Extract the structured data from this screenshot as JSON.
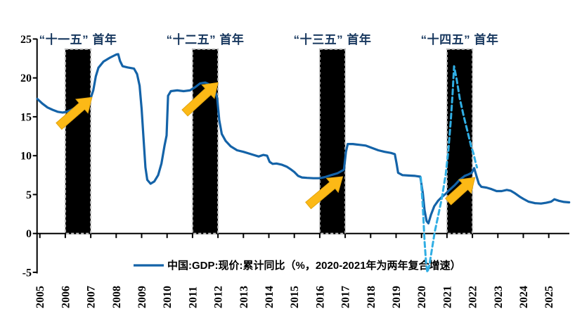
{
  "chart_data": {
    "type": "line",
    "title": "",
    "xlabel": "",
    "ylabel": "",
    "xlim": [
      2004.9,
      2025.9
    ],
    "ylim": [
      -5,
      25
    ],
    "y_ticks": [
      -5,
      0,
      5,
      10,
      15,
      20,
      25
    ],
    "x_ticks": [
      2005,
      2006,
      2007,
      2008,
      2009,
      2010,
      2011,
      2012,
      2013,
      2014,
      2015,
      2016,
      2017,
      2018,
      2019,
      2020,
      2021,
      2022,
      2023,
      2024,
      2025
    ],
    "grid": false,
    "legend": {
      "position": "bottom",
      "label": "中国:GDP:现价:累计同比（%，2020-2021年为两年复合增速）"
    },
    "colors": {
      "solid_line": "#1463A8",
      "dashed_line": "#30AEE4",
      "arrow": "#FCB916",
      "band_fill": "#000000",
      "band_border": "#BFBFBF",
      "plan_label": "#17375E",
      "axis": "#000000"
    },
    "series": [
      {
        "id": "gdp-current-price-cumulative-yoy",
        "style": "solid",
        "points": [
          [
            2004.9,
            17.3
          ],
          [
            2005.1,
            16.7
          ],
          [
            2005.3,
            16.2
          ],
          [
            2005.5,
            15.9
          ],
          [
            2005.7,
            15.65
          ],
          [
            2005.9,
            15.55
          ],
          [
            2006.1,
            15.7
          ],
          [
            2006.3,
            16.0
          ],
          [
            2006.5,
            16.4
          ],
          [
            2006.7,
            16.8
          ],
          [
            2006.9,
            17.0
          ],
          [
            2007.0,
            17.4
          ],
          [
            2007.1,
            18.4
          ],
          [
            2007.2,
            20.2
          ],
          [
            2007.3,
            21.3
          ],
          [
            2007.5,
            22.1
          ],
          [
            2007.75,
            22.6
          ],
          [
            2008.0,
            23.0
          ],
          [
            2008.08,
            23.05
          ],
          [
            2008.15,
            22.2
          ],
          [
            2008.25,
            21.5
          ],
          [
            2008.45,
            21.35
          ],
          [
            2008.7,
            21.2
          ],
          [
            2008.82,
            20.5
          ],
          [
            2008.92,
            19.0
          ],
          [
            2009.0,
            16.0
          ],
          [
            2009.07,
            12.5
          ],
          [
            2009.15,
            8.5
          ],
          [
            2009.22,
            6.9
          ],
          [
            2009.35,
            6.4
          ],
          [
            2009.5,
            6.7
          ],
          [
            2009.65,
            7.5
          ],
          [
            2009.78,
            9.0
          ],
          [
            2009.9,
            11.3
          ],
          [
            2009.98,
            12.6
          ],
          [
            2010.04,
            17.7
          ],
          [
            2010.15,
            18.3
          ],
          [
            2010.4,
            18.4
          ],
          [
            2010.65,
            18.3
          ],
          [
            2010.9,
            18.4
          ],
          [
            2011.1,
            18.8
          ],
          [
            2011.3,
            19.3
          ],
          [
            2011.5,
            19.4
          ],
          [
            2011.7,
            19.1
          ],
          [
            2011.85,
            18.6
          ],
          [
            2011.97,
            17.4
          ],
          [
            2012.05,
            14.6
          ],
          [
            2012.15,
            12.8
          ],
          [
            2012.3,
            11.9
          ],
          [
            2012.5,
            11.2
          ],
          [
            2012.75,
            10.7
          ],
          [
            2013.0,
            10.5
          ],
          [
            2013.2,
            10.3
          ],
          [
            2013.4,
            10.1
          ],
          [
            2013.6,
            9.9
          ],
          [
            2013.78,
            10.1
          ],
          [
            2013.93,
            10.0
          ],
          [
            2014.03,
            9.2
          ],
          [
            2014.15,
            8.95
          ],
          [
            2014.3,
            9.0
          ],
          [
            2014.5,
            8.85
          ],
          [
            2014.7,
            8.6
          ],
          [
            2014.88,
            8.2
          ],
          [
            2015.0,
            7.9
          ],
          [
            2015.15,
            7.4
          ],
          [
            2015.3,
            7.2
          ],
          [
            2015.5,
            7.15
          ],
          [
            2015.75,
            7.1
          ],
          [
            2016.0,
            7.1
          ],
          [
            2016.2,
            7.25
          ],
          [
            2016.45,
            7.5
          ],
          [
            2016.7,
            7.75
          ],
          [
            2016.95,
            8.2
          ],
          [
            2017.03,
            10.5
          ],
          [
            2017.1,
            11.5
          ],
          [
            2017.3,
            11.5
          ],
          [
            2017.55,
            11.4
          ],
          [
            2017.8,
            11.3
          ],
          [
            2018.05,
            11.0
          ],
          [
            2018.3,
            10.7
          ],
          [
            2018.55,
            10.5
          ],
          [
            2018.8,
            10.35
          ],
          [
            2018.95,
            10.2
          ],
          [
            2019.02,
            9.0
          ],
          [
            2019.08,
            7.8
          ],
          [
            2019.25,
            7.5
          ],
          [
            2019.5,
            7.45
          ],
          [
            2019.75,
            7.4
          ],
          [
            2019.95,
            7.3
          ],
          [
            2020.05,
            5.2
          ],
          [
            2020.12,
            3.0
          ],
          [
            2020.2,
            1.6
          ],
          [
            2020.27,
            1.3
          ],
          [
            2020.37,
            2.4
          ],
          [
            2020.5,
            3.5
          ],
          [
            2020.65,
            4.2
          ],
          [
            2020.8,
            4.7
          ],
          [
            2020.95,
            5.1
          ],
          [
            2021.1,
            5.6
          ],
          [
            2021.3,
            6.2
          ],
          [
            2021.5,
            6.9
          ],
          [
            2021.7,
            7.4
          ],
          [
            2021.85,
            7.6
          ],
          [
            2021.97,
            7.8
          ],
          [
            2022.07,
            8.4
          ],
          [
            2022.15,
            7.5
          ],
          [
            2022.25,
            6.4
          ],
          [
            2022.35,
            6.0
          ],
          [
            2022.55,
            5.9
          ],
          [
            2022.75,
            5.7
          ],
          [
            2022.95,
            5.45
          ],
          [
            2023.15,
            5.45
          ],
          [
            2023.35,
            5.6
          ],
          [
            2023.5,
            5.5
          ],
          [
            2023.68,
            5.15
          ],
          [
            2023.85,
            4.75
          ],
          [
            2024.0,
            4.45
          ],
          [
            2024.2,
            4.1
          ],
          [
            2024.45,
            3.9
          ],
          [
            2024.7,
            3.85
          ],
          [
            2024.9,
            3.95
          ],
          [
            2025.1,
            4.1
          ],
          [
            2025.22,
            4.4
          ],
          [
            2025.4,
            4.2
          ],
          [
            2025.6,
            4.05
          ],
          [
            2025.8,
            4.0
          ]
        ]
      },
      {
        "id": "actual-cumulative-yoy-2020-2021",
        "style": "dashed",
        "points": [
          [
            2019.97,
            7.2
          ],
          [
            2020.05,
            3.5
          ],
          [
            2020.12,
            -1.0
          ],
          [
            2020.18,
            -3.8
          ],
          [
            2020.23,
            -5.0
          ],
          [
            2020.3,
            -4.2
          ],
          [
            2020.4,
            -2.2
          ],
          [
            2020.52,
            0.2
          ],
          [
            2020.65,
            2.2
          ],
          [
            2020.8,
            4.6
          ],
          [
            2020.95,
            7.6
          ],
          [
            2021.05,
            10.5
          ],
          [
            2021.15,
            14.5
          ],
          [
            2021.22,
            18.0
          ],
          [
            2021.28,
            21.5
          ],
          [
            2021.38,
            19.8
          ],
          [
            2021.5,
            17.4
          ],
          [
            2021.65,
            15.2
          ],
          [
            2021.8,
            13.2
          ],
          [
            2021.95,
            11.2
          ],
          [
            2022.05,
            10.2
          ],
          [
            2022.12,
            9.2
          ],
          [
            2022.18,
            8.5
          ]
        ]
      }
    ],
    "highlight_bands": [
      {
        "label": "“十一五” 首年",
        "from": 2006,
        "to": 2007,
        "top": 23.7
      },
      {
        "label": "“十二五” 首年",
        "from": 2011,
        "to": 2012,
        "top": 23.7
      },
      {
        "label": "“十三五” 首年",
        "from": 2016,
        "to": 2017,
        "top": 23.7
      },
      {
        "label": "“十四五” 首年",
        "from": 2021,
        "to": 2022,
        "top": 23.7
      }
    ],
    "arrows": [
      {
        "from": [
          2005.75,
          13.8
        ],
        "to": [
          2007.05,
          17.5
        ]
      },
      {
        "from": [
          2010.7,
          15.5
        ],
        "to": [
          2012.0,
          19.4
        ]
      },
      {
        "from": [
          2015.55,
          3.6
        ],
        "to": [
          2016.9,
          7.3
        ]
      },
      {
        "from": [
          2021.05,
          4.1
        ],
        "to": [
          2022.1,
          7.2
        ]
      }
    ]
  }
}
